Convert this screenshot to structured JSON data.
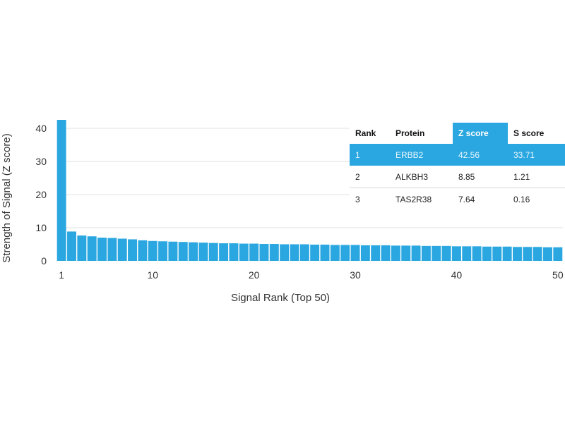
{
  "chart_data": {
    "type": "bar",
    "xlabel": "Signal Rank (Top 50)",
    "ylabel": "Strength of Signal (Z score)",
    "ylim": [
      0,
      42.56
    ],
    "yticks": [
      0,
      10,
      20,
      30,
      40
    ],
    "xticks": [
      1,
      10,
      20,
      30,
      40,
      50
    ],
    "grid": true,
    "bar_color": "#2aa7e0",
    "categories": [
      1,
      2,
      3,
      4,
      5,
      6,
      7,
      8,
      9,
      10,
      11,
      12,
      13,
      14,
      15,
      16,
      17,
      18,
      19,
      20,
      21,
      22,
      23,
      24,
      25,
      26,
      27,
      28,
      29,
      30,
      31,
      32,
      33,
      34,
      35,
      36,
      37,
      38,
      39,
      40,
      41,
      42,
      43,
      44,
      45,
      46,
      47,
      48,
      49,
      50
    ],
    "values": [
      42.56,
      8.85,
      7.64,
      7.4,
      7.0,
      6.9,
      6.7,
      6.5,
      6.2,
      6.0,
      5.9,
      5.8,
      5.7,
      5.6,
      5.5,
      5.4,
      5.3,
      5.3,
      5.2,
      5.2,
      5.1,
      5.1,
      5.0,
      5.0,
      5.0,
      4.9,
      4.9,
      4.8,
      4.8,
      4.8,
      4.7,
      4.7,
      4.7,
      4.6,
      4.6,
      4.6,
      4.5,
      4.5,
      4.5,
      4.4,
      4.4,
      4.4,
      4.3,
      4.3,
      4.3,
      4.2,
      4.2,
      4.2,
      4.1,
      4.1
    ]
  },
  "table": {
    "headers": {
      "rank": "Rank",
      "protein": "Protein",
      "z": "Z score",
      "s": "S score"
    },
    "rows": [
      {
        "rank": "1",
        "protein": "ERBB2",
        "z": "42.56",
        "s": "33.71"
      },
      {
        "rank": "2",
        "protein": "ALKBH3",
        "z": "8.85",
        "s": "1.21"
      },
      {
        "rank": "3",
        "protein": "TAS2R38",
        "z": "7.64",
        "s": "0.16"
      }
    ],
    "highlight_color": "#2aa7e0"
  }
}
